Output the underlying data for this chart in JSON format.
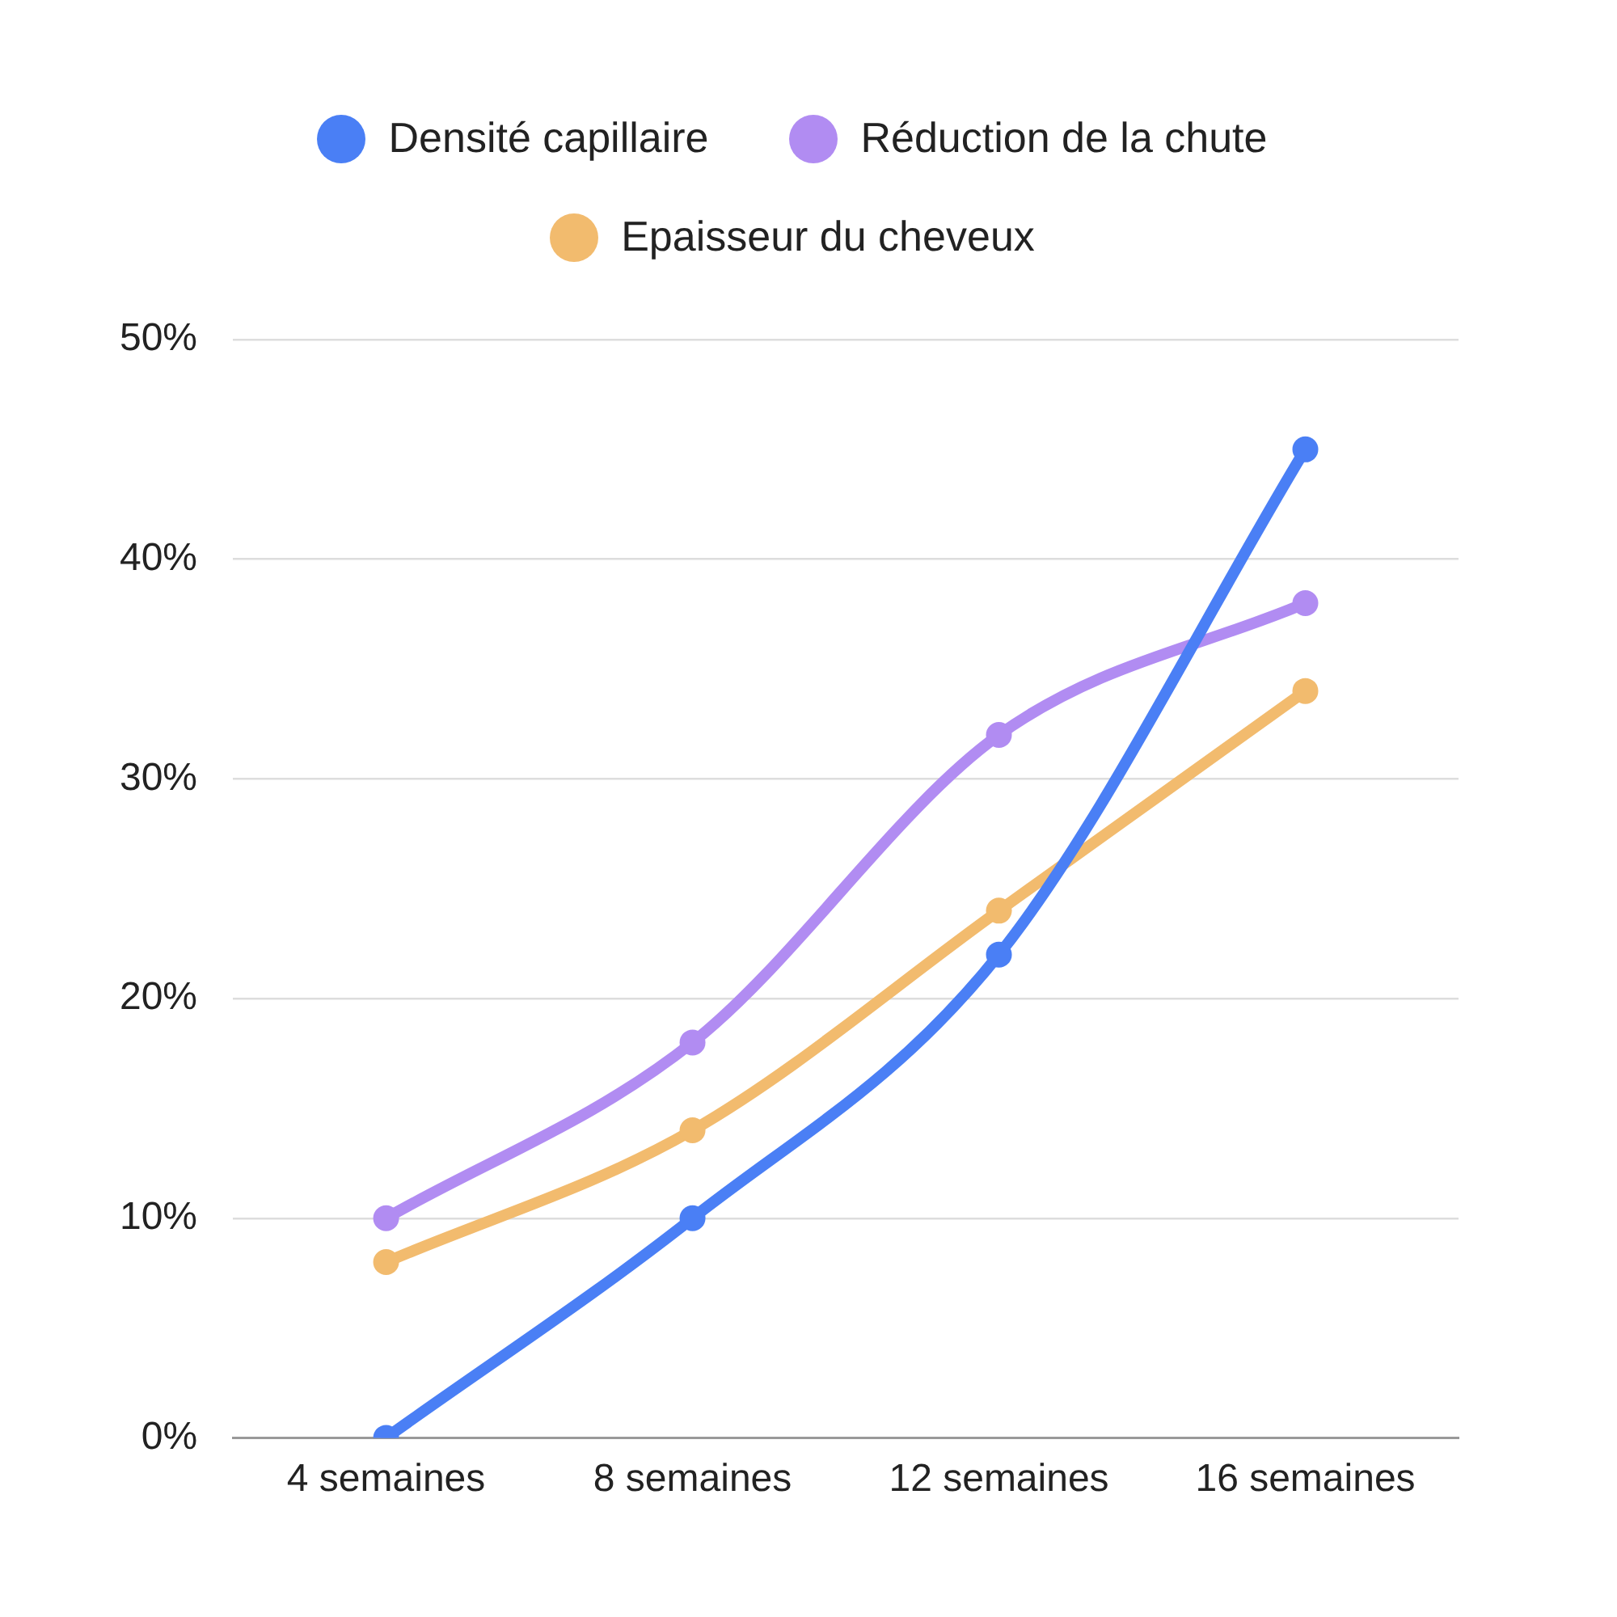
{
  "chart_data": {
    "type": "line",
    "categories": [
      "4 semaines",
      "8 semaines",
      "12 semaines",
      "16 semaines"
    ],
    "series": [
      {
        "name": "Densité capillaire",
        "color": "#4a7ff5",
        "values": [
          0,
          10,
          22,
          45
        ]
      },
      {
        "name": "Réduction de la chute",
        "color": "#b18cf2",
        "values": [
          10,
          18,
          32,
          38
        ]
      },
      {
        "name": "Epaisseur du cheveux",
        "color": "#f2bb6e",
        "values": [
          8,
          14,
          24,
          34
        ]
      }
    ],
    "ylim": [
      0,
      50
    ],
    "yticks": [
      {
        "value": 0,
        "label": "0%"
      },
      {
        "value": 10,
        "label": "10%"
      },
      {
        "value": 20,
        "label": "20%"
      },
      {
        "value": 30,
        "label": "30%"
      },
      {
        "value": 40,
        "label": "40%"
      },
      {
        "value": 50,
        "label": "50%"
      }
    ],
    "grid": "y",
    "legend": "top",
    "marker": "circle",
    "line_style": "solid"
  }
}
